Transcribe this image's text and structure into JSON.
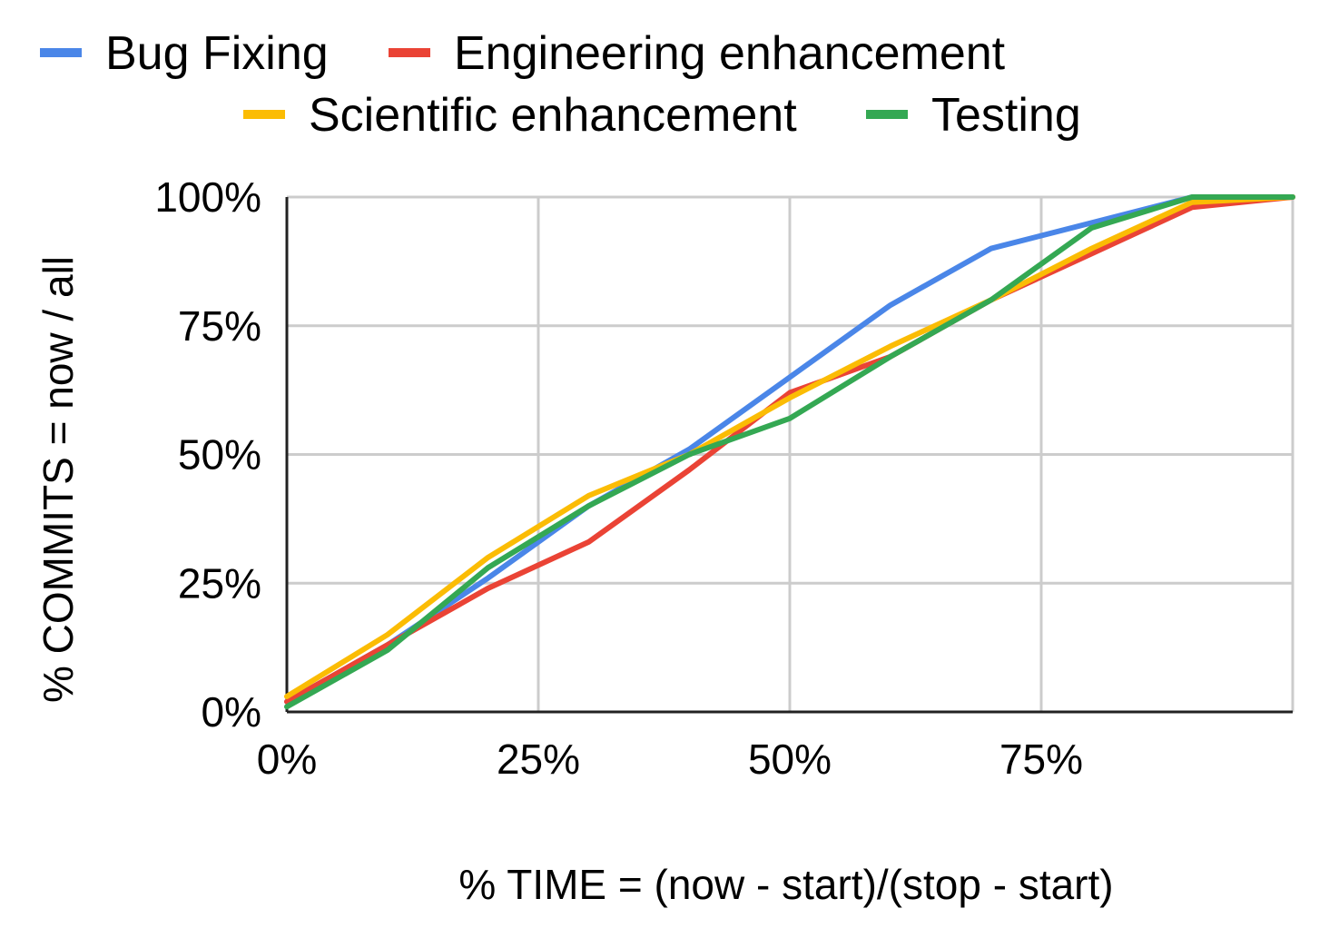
{
  "chart_data": {
    "type": "line",
    "title": "",
    "xlabel": "% TIME = (now - start)/(stop - start)",
    "ylabel": "% COMMITS = now / all",
    "xlim": [
      0,
      100
    ],
    "ylim": [
      0,
      100
    ],
    "x_ticks": [
      "0%",
      "25%",
      "50%",
      "75%"
    ],
    "y_ticks": [
      "0%",
      "25%",
      "50%",
      "75%",
      "100%"
    ],
    "grid": true,
    "legend_position": "top",
    "x": [
      0,
      10,
      20,
      30,
      40,
      50,
      60,
      70,
      80,
      90,
      100
    ],
    "series": [
      {
        "name": "Bug Fixing",
        "color": "#4a86e8",
        "values": [
          2,
          13,
          26,
          40,
          51,
          65,
          79,
          90,
          95,
          100,
          100
        ]
      },
      {
        "name": "Engineering enhancement",
        "color": "#ea4335",
        "values": [
          2,
          13,
          24,
          33,
          47,
          62,
          69,
          80,
          89,
          98,
          100
        ]
      },
      {
        "name": "Scientific enhancement",
        "color": "#fbbc04",
        "values": [
          3,
          15,
          30,
          42,
          50,
          61,
          71,
          80,
          90,
          99,
          100
        ]
      },
      {
        "name": "Testing",
        "color": "#34a853",
        "values": [
          1,
          12,
          28,
          40,
          50,
          57,
          69,
          80,
          94,
          100,
          100
        ]
      }
    ]
  }
}
